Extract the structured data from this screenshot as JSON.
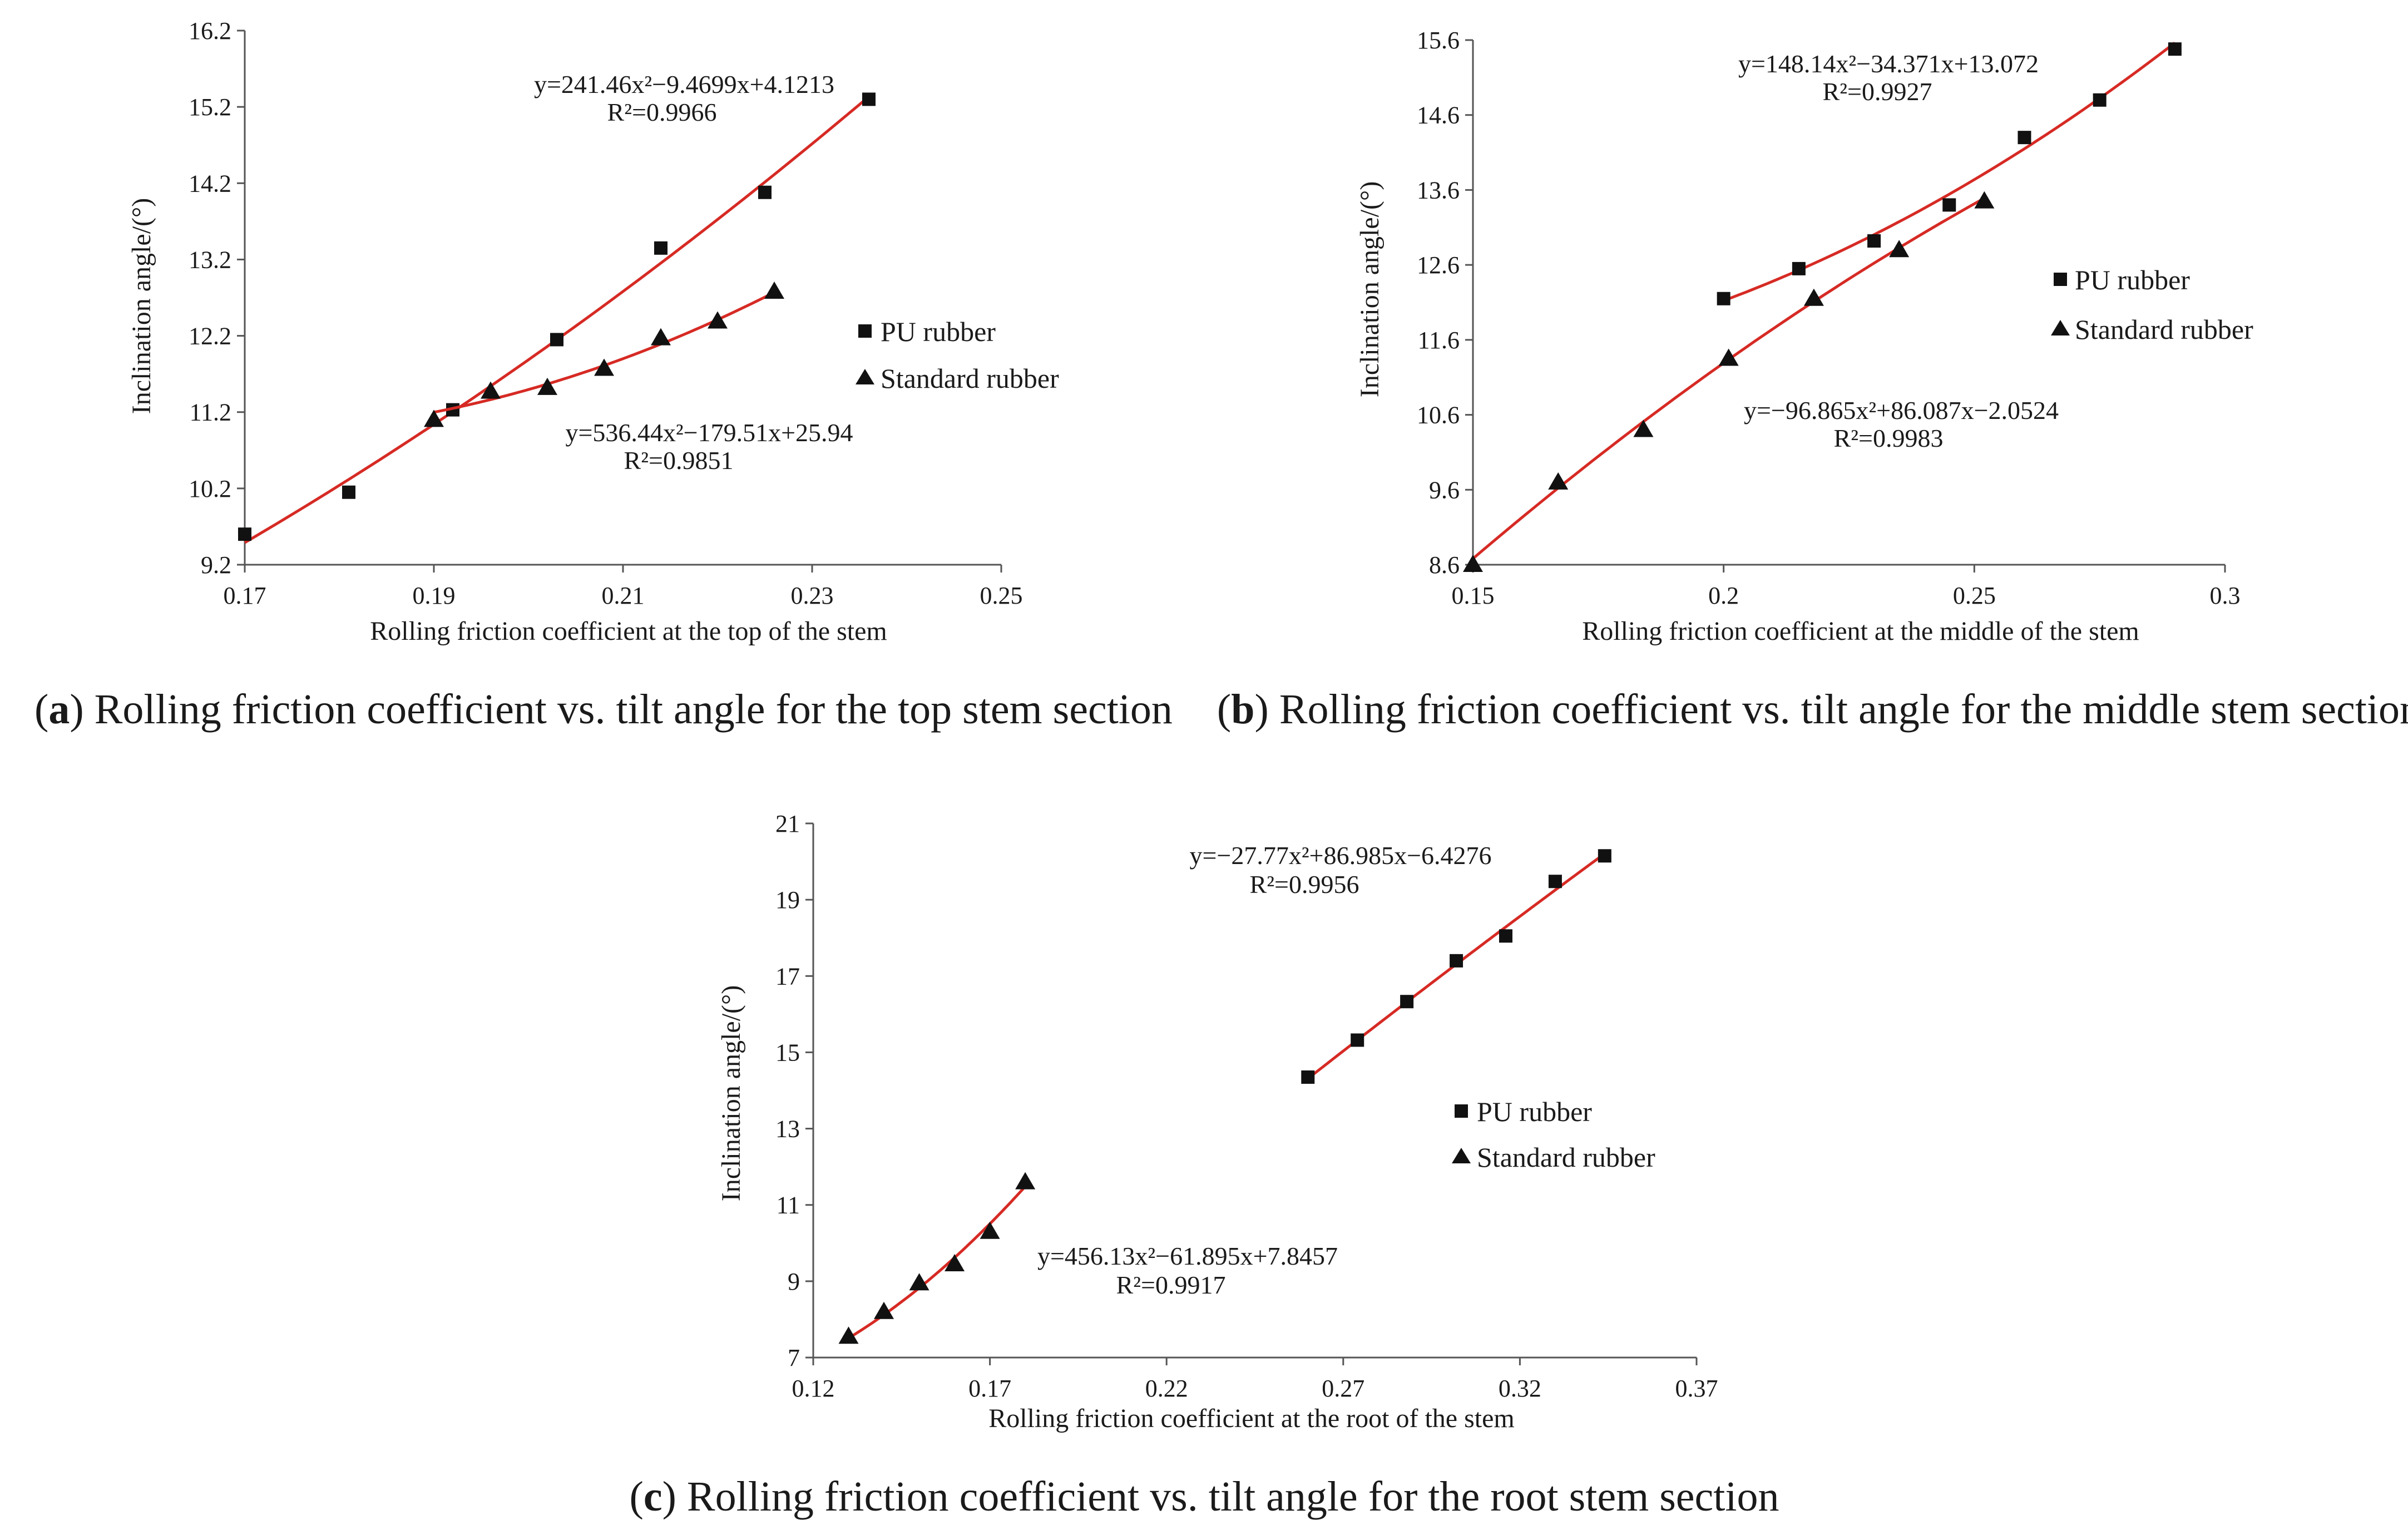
{
  "colors": {
    "fit_line": "#d62a24",
    "marker": "#111111",
    "axis": "#555555",
    "background": "#ffffff"
  },
  "chart_data": [
    {
      "id": "a",
      "type": "scatter",
      "title": "",
      "caption_letter": "a",
      "caption_text": "Rolling friction coefficient vs. tilt angle for the top stem section",
      "xlabel": "Rolling friction coefficient at the top of the stem",
      "ylabel": "Inclination angle/(°)",
      "xlim": [
        0.17,
        0.25
      ],
      "ylim": [
        9.2,
        16.2
      ],
      "xticks": [
        "0.17",
        "0.19",
        "0.21",
        "0.23",
        "0.25"
      ],
      "yticks": [
        "9.2",
        "10.2",
        "11.2",
        "12.2",
        "13.2",
        "14.2",
        "15.2",
        "16.2"
      ],
      "legend": {
        "position": "center-right",
        "entries": [
          "PU rubber",
          "Standard rubber"
        ]
      },
      "series": [
        {
          "name": "PU rubber",
          "marker": "square",
          "x": [
            0.17,
            0.181,
            0.192,
            0.203,
            0.214,
            0.225,
            0.236
          ],
          "y": [
            9.6,
            10.15,
            11.23,
            12.15,
            13.35,
            14.08,
            15.3
          ],
          "fit": {
            "a": 241.46,
            "b": -9.4699,
            "c": 4.1213,
            "equation": "y=241.46x²−9.4699x+4.1213",
            "r2": "R²=0.9966",
            "label_anchor": "upper"
          }
        },
        {
          "name": "Standard rubber",
          "marker": "triangle",
          "x": [
            0.19,
            0.196,
            0.202,
            0.208,
            0.214,
            0.22,
            0.226
          ],
          "y": [
            11.1,
            11.47,
            11.52,
            11.77,
            12.17,
            12.39,
            12.78
          ],
          "fit": {
            "a": 536.44,
            "b": -179.51,
            "c": 25.94,
            "equation": "y=536.44x²−179.51x+25.94",
            "r2": "R²=0.9851",
            "label_anchor": "lower"
          }
        }
      ]
    },
    {
      "id": "b",
      "type": "scatter",
      "title": "",
      "caption_letter": "b",
      "caption_text": "Rolling friction coefficient vs. tilt angle for the middle stem section",
      "xlabel": "Rolling friction coefficient at the middle of the stem",
      "ylabel": "Inclination angle/(°)",
      "xlim": [
        0.15,
        0.3
      ],
      "ylim": [
        8.6,
        15.6
      ],
      "xticks": [
        "0.15",
        "0.2",
        "0.25",
        "0.3"
      ],
      "yticks": [
        "8.6",
        "9.6",
        "10.6",
        "11.6",
        "12.6",
        "13.6",
        "14.6",
        "15.6"
      ],
      "legend": {
        "position": "center-right",
        "entries": [
          "PU rubber",
          "Standard rubber"
        ]
      },
      "series": [
        {
          "name": "PU rubber",
          "marker": "square",
          "x": [
            0.2,
            0.215,
            0.23,
            0.245,
            0.26,
            0.275,
            0.29
          ],
          "y": [
            12.15,
            12.55,
            12.92,
            13.4,
            14.3,
            14.8,
            15.48
          ],
          "fit": {
            "a": 148.14,
            "b": -34.371,
            "c": 13.072,
            "equation": "y=148.14x²−34.371x+13.072",
            "r2": "R²=0.9927",
            "label_anchor": "upper"
          }
        },
        {
          "name": "Standard rubber",
          "marker": "triangle",
          "x": [
            0.15,
            0.167,
            0.184,
            0.201,
            0.218,
            0.235,
            0.252
          ],
          "y": [
            8.6,
            9.7,
            10.4,
            11.35,
            12.15,
            12.8,
            13.45
          ],
          "fit": {
            "a": -96.865,
            "b": 86.087,
            "c": -2.0524,
            "equation": "y=−96.865x²+86.087x−2.0524",
            "r2": "R²=0.9983",
            "label_anchor": "lower"
          }
        }
      ]
    },
    {
      "id": "c",
      "type": "scatter",
      "title": "",
      "caption_letter": "c",
      "caption_text": "Rolling friction coefficient vs. tilt angle for the root stem section",
      "xlabel": "Rolling friction coefficient at the root of the stem",
      "ylabel": "Inclination angle/(°)",
      "xlim": [
        0.12,
        0.37
      ],
      "ylim": [
        7,
        21
      ],
      "xticks": [
        "0.12",
        "0.17",
        "0.22",
        "0.27",
        "0.32",
        "0.37"
      ],
      "yticks": [
        "7",
        "9",
        "11",
        "13",
        "15",
        "17",
        "19",
        "21"
      ],
      "legend": {
        "position": "center-right",
        "entries": [
          "PU rubber",
          "Standard rubber"
        ]
      },
      "series": [
        {
          "name": "PU rubber",
          "marker": "square",
          "x": [
            0.26,
            0.274,
            0.288,
            0.302,
            0.316,
            0.33,
            0.344
          ],
          "y": [
            14.35,
            15.32,
            16.33,
            17.4,
            18.05,
            19.48,
            20.15
          ],
          "fit": {
            "a": -27.77,
            "b": 86.985,
            "c": -6.4276,
            "equation": "y=−27.77x²+86.985x−6.4276",
            "r2": "R²=0.9956",
            "label_anchor": "upper"
          }
        },
        {
          "name": "Standard rubber",
          "marker": "triangle",
          "x": [
            0.13,
            0.14,
            0.15,
            0.16,
            0.17,
            0.18
          ],
          "y": [
            7.55,
            8.2,
            8.95,
            9.45,
            10.3,
            11.6
          ],
          "fit": {
            "a": 456.13,
            "b": -61.895,
            "c": 7.8457,
            "equation": "y=456.13x²−61.895x+7.8457",
            "r2": "R²=0.9917",
            "label_anchor": "lower"
          }
        }
      ]
    }
  ]
}
